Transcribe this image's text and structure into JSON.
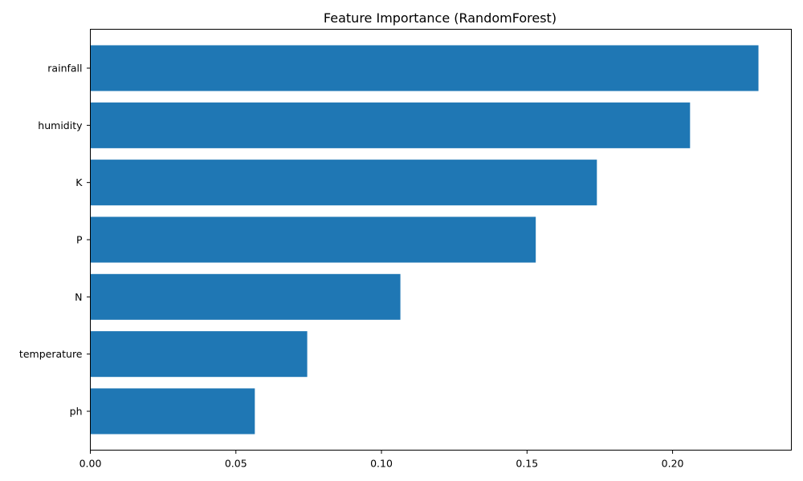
{
  "chart_data": {
    "type": "bar",
    "orientation": "horizontal",
    "title": "Feature Importance (RandomForest)",
    "xlabel": "",
    "ylabel": "",
    "categories": [
      "rainfall",
      "humidity",
      "K",
      "P",
      "N",
      "temperature",
      "ph"
    ],
    "values": [
      0.2295,
      0.206,
      0.174,
      0.153,
      0.1065,
      0.0745,
      0.0565
    ],
    "xlim": [
      0,
      0.2408
    ],
    "xticks": [
      0.0,
      0.05,
      0.1,
      0.15,
      0.2
    ],
    "xtick_labels": [
      "0.00",
      "0.05",
      "0.10",
      "0.15",
      "0.20"
    ],
    "grid": false,
    "legend": "none",
    "bar_color": "#1f77b4"
  }
}
